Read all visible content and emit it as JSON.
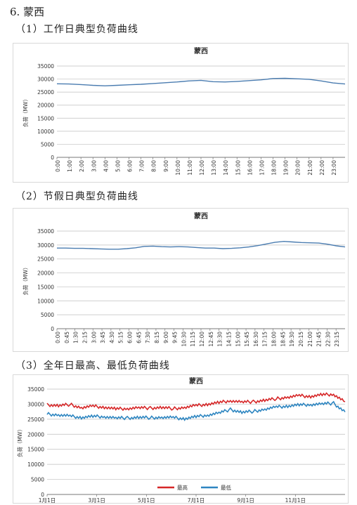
{
  "heading": "6. 蒙西",
  "sections": [
    {
      "subtitle": "（1）工作日典型负荷曲线"
    },
    {
      "subtitle": "（2）节假日典型负荷曲线"
    },
    {
      "subtitle": "（3）全年日最高、最低负荷曲线"
    }
  ],
  "chart_data": [
    {
      "type": "line",
      "title": "蒙西",
      "ylabel": "负荷（MW）",
      "ylim": [
        0,
        35000
      ],
      "yticks": [
        0,
        5000,
        10000,
        15000,
        20000,
        25000,
        30000,
        35000
      ],
      "grid": true,
      "xticks": [
        "0:00",
        "1:00",
        "2:00",
        "3:00",
        "4:00",
        "5:00",
        "6:00",
        "7:00",
        "8:00",
        "9:00",
        "10:00",
        "11:00",
        "12:00",
        "13:00",
        "14:00",
        "15:00",
        "16:00",
        "17:00",
        "18:00",
        "19:00",
        "20:00",
        "21:00",
        "22:00",
        "23:00"
      ],
      "series": [
        {
          "color": "#4a7cb0",
          "values": [
            28200,
            28100,
            27900,
            27600,
            27400,
            27600,
            27800,
            28000,
            28300,
            28600,
            28900,
            29300,
            29500,
            29000,
            28900,
            29100,
            29400,
            29700,
            30200,
            30300,
            30100,
            29900,
            29300,
            28500,
            28100
          ]
        }
      ]
    },
    {
      "type": "line",
      "title": "蒙西",
      "ylabel": "负荷（MW）",
      "ylim": [
        0,
        35000
      ],
      "yticks": [
        0,
        5000,
        10000,
        15000,
        20000,
        25000,
        30000,
        35000
      ],
      "grid": true,
      "xticks": [
        "0:00",
        "0:45",
        "1:30",
        "2:15",
        "3:00",
        "3:45",
        "4:30",
        "5:15",
        "6:00",
        "6:45",
        "7:30",
        "8:15",
        "9:00",
        "9:45",
        "10:30",
        "11:15",
        "12:00",
        "12:45",
        "13:30",
        "14:15",
        "15:00",
        "15:45",
        "16:30",
        "17:15",
        "18:00",
        "18:45",
        "19:30",
        "20:15",
        "21:00",
        "21:45",
        "22:30",
        "23:15"
      ],
      "series": [
        {
          "color": "#4a7cb0",
          "values": [
            28900,
            28900,
            28800,
            28800,
            28700,
            28600,
            28500,
            28500,
            28700,
            29000,
            29500,
            29600,
            29400,
            29300,
            29400,
            29300,
            29100,
            28900,
            28900,
            28700,
            28800,
            29000,
            29300,
            29800,
            30400,
            31000,
            31300,
            31100,
            30900,
            30800,
            30700,
            30300,
            29700,
            29300
          ]
        }
      ]
    },
    {
      "type": "line",
      "title": "蒙西",
      "ylabel": "负荷（MW）",
      "ylim": [
        0,
        35000
      ],
      "yticks": [
        0,
        5000,
        10000,
        15000,
        20000,
        25000,
        30000,
        35000
      ],
      "grid": true,
      "xticks": [
        "1月1日",
        "3月1日",
        "5月1日",
        "7月1日",
        "9月1日",
        "11月1日"
      ],
      "legend": "bottom",
      "series": [
        {
          "name": "最高",
          "color": "#d62728",
          "values": [
            29800,
            29500,
            29900,
            28800,
            29300,
            29000,
            28400,
            28600,
            28800,
            28700,
            28900,
            28500,
            28900,
            29500,
            30000,
            30500,
            31200,
            30700,
            30800,
            31300,
            31800,
            32300,
            32800,
            32600,
            33100,
            33300,
            30800
          ]
        },
        {
          "name": "最低",
          "color": "#2e86c1",
          "values": [
            26700,
            26400,
            26000,
            25600,
            25900,
            25900,
            25400,
            25400,
            25600,
            25500,
            25600,
            25500,
            25200,
            25800,
            26400,
            27100,
            28200,
            27300,
            27600,
            28300,
            29000,
            29400,
            29700,
            29900,
            30100,
            30300,
            27400
          ]
        }
      ]
    }
  ]
}
